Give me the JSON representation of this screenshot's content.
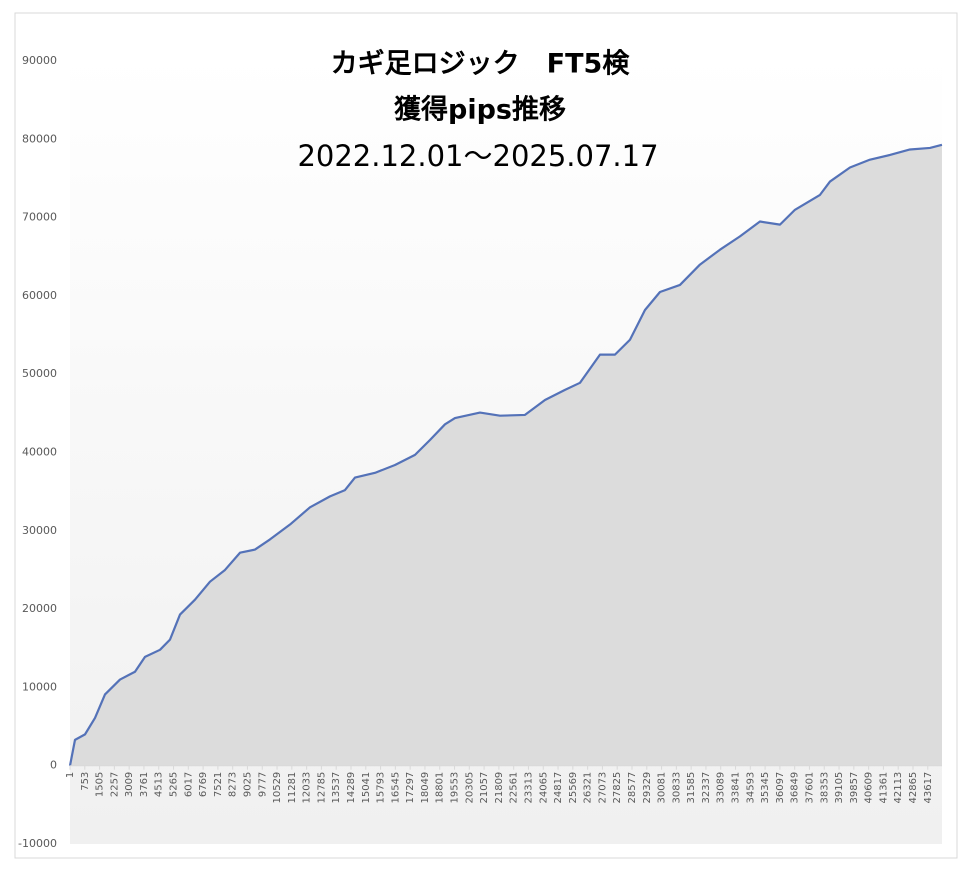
{
  "chart_data": {
    "type": "area",
    "title_lines": [
      "カギ足ロジック　FT5検",
      "獲得pips推移",
      "2022.12.01～2025.07.17"
    ],
    "x": [
      1,
      255,
      764,
      1272,
      1780,
      2543,
      3306,
      3814,
      4577,
      5085,
      5594,
      6356,
      7119,
      7882,
      8645,
      9407,
      10170,
      11187,
      12204,
      13221,
      13983,
      14492,
      15509,
      16526,
      17543,
      18305,
      19068,
      19576,
      20848,
      21864,
      23135,
      24152,
      25169,
      25932,
      26949,
      27711,
      28474,
      29237,
      29999,
      31016,
      32033,
      33050,
      34067,
      35084,
      36101,
      36864,
      38135,
      38643,
      39660,
      40677,
      41694,
      42711,
      43728,
      44338
    ],
    "series": [
      {
        "color": "#5472b8",
        "fill": "#dcdcdc",
        "values": [
          0,
          3300,
          4000,
          6100,
          9100,
          11000,
          12000,
          13900,
          14800,
          16100,
          19300,
          21200,
          23500,
          25000,
          27200,
          27600,
          28900,
          30800,
          33000,
          34400,
          35200,
          36800,
          37400,
          38400,
          39700,
          41600,
          43600,
          44400,
          45100,
          44700,
          44800,
          46700,
          48000,
          48900,
          52500,
          52500,
          54400,
          58200,
          60500,
          61400,
          64000,
          65900,
          67600,
          69500,
          69100,
          71000,
          72900,
          74600,
          76400,
          77400,
          78000,
          78700,
          78900,
          79300
        ]
      }
    ],
    "xlim": [
      1,
      44340
    ],
    "xticks": [
      1,
      753,
      1505,
      2257,
      3009,
      3761,
      4513,
      5265,
      6017,
      6769,
      7521,
      8273,
      9025,
      9777,
      10529,
      11281,
      12033,
      12785,
      13537,
      14289,
      15041,
      15793,
      16545,
      17297,
      18049,
      18801,
      19553,
      20305,
      21057,
      21809,
      22561,
      23313,
      24065,
      24817,
      25569,
      26321,
      27073,
      27825,
      28577,
      29329,
      30081,
      30833,
      31585,
      32337,
      33089,
      33841,
      34593,
      35345,
      36097,
      36849,
      37601,
      38353,
      39105,
      39857,
      40609,
      41361,
      42113,
      42865,
      43617
    ],
    "ylim": [
      -10000,
      90000
    ],
    "yticks": [
      -10000,
      0,
      10000,
      20000,
      30000,
      40000,
      50000,
      60000,
      70000,
      80000,
      90000
    ]
  }
}
